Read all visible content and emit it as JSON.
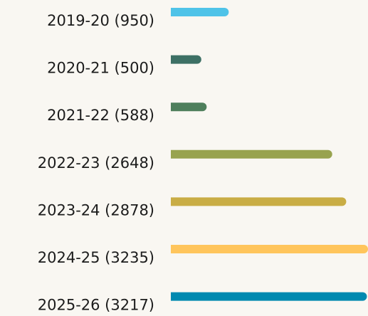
{
  "chart_data": {
    "type": "bar",
    "orientation": "horizontal",
    "categories": [
      "2019-20 (950)",
      "2020-21 (500)",
      "2021-22 (588)",
      "2022-23 (2648)",
      "2023-24 (2878)",
      "2024-25 (3235)",
      "2025-26 (3217)"
    ],
    "values": [
      950,
      500,
      588,
      2648,
      2878,
      3235,
      3217
    ],
    "colors": [
      "#4fc3e8",
      "#3d7065",
      "#4e7f5c",
      "#98a34f",
      "#c9ad45",
      "#ffc55c",
      "#0089b0"
    ]
  }
}
